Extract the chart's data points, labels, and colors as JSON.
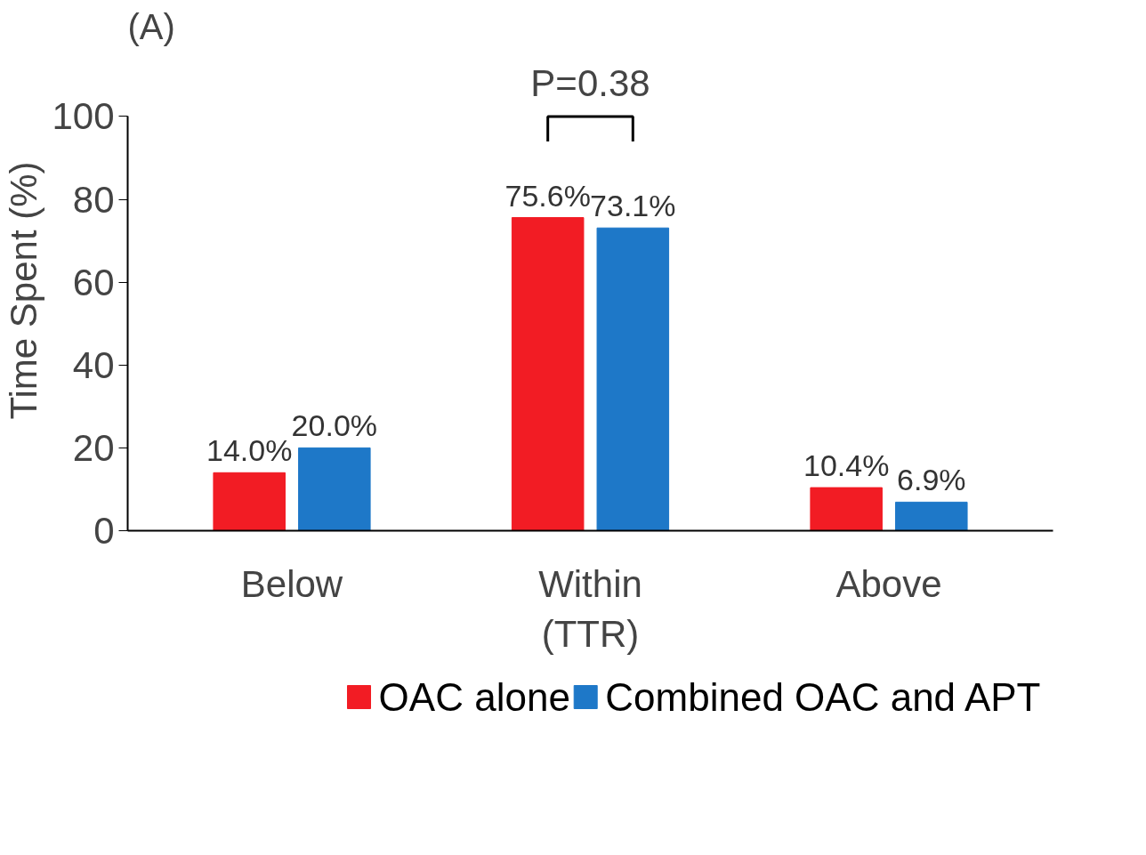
{
  "chart_data": {
    "type": "bar",
    "ylabel": "Time Spent (%)",
    "categories": [
      "Below",
      "Within\n(TTR)",
      "Above"
    ],
    "series": [
      {
        "name": "OAC alone",
        "color": "#f21c24",
        "values": [
          14.0,
          75.6,
          10.4
        ],
        "value_labels": [
          "14.0%",
          "75.6%",
          "10.4%"
        ]
      },
      {
        "name": "Combined OAC and APT",
        "color": "#1e78c8",
        "values": [
          20.0,
          73.1,
          6.9
        ],
        "value_labels": [
          "20.0%",
          "73.1%",
          "6.9%"
        ]
      }
    ],
    "ylim": [
      0,
      100
    ],
    "yticks": [
      0,
      20,
      40,
      60,
      80,
      100
    ],
    "grid": false,
    "legend": "bottom",
    "annotations": [
      "(A)",
      "P=0.38"
    ]
  }
}
